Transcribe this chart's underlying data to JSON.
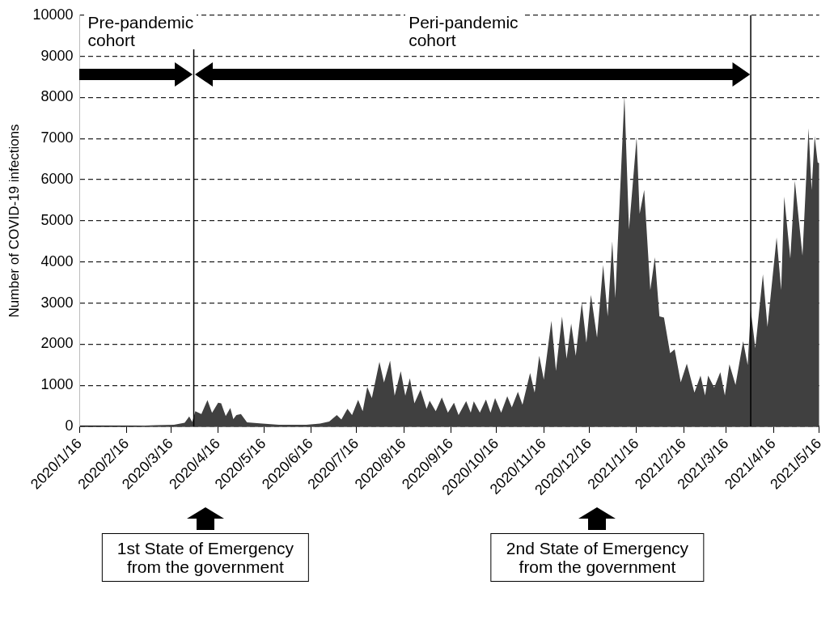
{
  "chart_data": {
    "type": "area",
    "ylabel": "Number of COVID-19 infections",
    "x": [
      "2020-01-16",
      "2020-02-21",
      "2020-03-06",
      "2020-03-18",
      "2020-03-25",
      "2020-03-28",
      "2020-03-30",
      "2020-04-01",
      "2020-04-05",
      "2020-04-09",
      "2020-04-12",
      "2020-04-16",
      "2020-04-18",
      "2020-04-21",
      "2020-04-24",
      "2020-04-26",
      "2020-04-28",
      "2020-05-01",
      "2020-05-05",
      "2020-05-15",
      "2020-05-26",
      "2020-06-13",
      "2020-06-22",
      "2020-06-28",
      "2020-07-03",
      "2020-07-06",
      "2020-07-10",
      "2020-07-13",
      "2020-07-17",
      "2020-07-20",
      "2020-07-23",
      "2020-07-26",
      "2020-07-31",
      "2020-08-03",
      "2020-08-07",
      "2020-08-10",
      "2020-08-14",
      "2020-08-17",
      "2020-08-20",
      "2020-08-23",
      "2020-08-27",
      "2020-08-31",
      "2020-09-02",
      "2020-09-06",
      "2020-09-10",
      "2020-09-14",
      "2020-09-18",
      "2020-09-21",
      "2020-09-26",
      "2020-09-29",
      "2020-10-01",
      "2020-10-05",
      "2020-10-09",
      "2020-10-12",
      "2020-10-15",
      "2020-10-19",
      "2020-10-23",
      "2020-10-26",
      "2020-10-30",
      "2020-11-02",
      "2020-11-07",
      "2020-11-10",
      "2020-11-13",
      "2020-11-16",
      "2020-11-21",
      "2020-11-24",
      "2020-11-28",
      "2020-12-01",
      "2020-12-04",
      "2020-12-07",
      "2020-12-11",
      "2020-12-14",
      "2020-12-17",
      "2020-12-21",
      "2020-12-25",
      "2020-12-28",
      "2020-12-31",
      "2021-01-02",
      "2021-01-08",
      "2021-01-11",
      "2021-01-16",
      "2021-01-18",
      "2021-01-21",
      "2021-01-25",
      "2021-01-28",
      "2021-01-31",
      "2021-02-03",
      "2021-02-07",
      "2021-02-10",
      "2021-02-14",
      "2021-02-18",
      "2021-02-23",
      "2021-02-27",
      "2021-03-02",
      "2021-03-04",
      "2021-03-08",
      "2021-03-12",
      "2021-03-15",
      "2021-03-18",
      "2021-03-22",
      "2021-03-27",
      "2021-03-30",
      "2021-04-01",
      "2021-04-04",
      "2021-04-09",
      "2021-04-12",
      "2021-04-18",
      "2021-04-21",
      "2021-04-23",
      "2021-04-27",
      "2021-04-30",
      "2021-05-05",
      "2021-05-09",
      "2021-05-11",
      "2021-05-13",
      "2021-05-15",
      "2021-05-16"
    ],
    "series": [
      {
        "color": "#404040",
        "values": [
          0,
          10,
          30,
          40,
          90,
          240,
          110,
          370,
          300,
          640,
          330,
          575,
          560,
          250,
          450,
          180,
          275,
          300,
          100,
          70,
          40,
          40,
          70,
          120,
          275,
          170,
          430,
          275,
          645,
          370,
          960,
          690,
          1570,
          1070,
          1600,
          750,
          1345,
          750,
          1170,
          560,
          895,
          430,
          625,
          370,
          705,
          335,
          575,
          275,
          615,
          335,
          610,
          335,
          655,
          335,
          690,
          335,
          735,
          465,
          840,
          525,
          1300,
          820,
          1715,
          1140,
          2570,
          1350,
          2670,
          1650,
          2500,
          1715,
          3010,
          2035,
          3200,
          2160,
          3925,
          2675,
          4500,
          3125,
          8040,
          4790,
          7030,
          5170,
          5750,
          3315,
          4115,
          2675,
          2645,
          1780,
          1875,
          1075,
          1525,
          820,
          1235,
          755,
          1235,
          945,
          1320,
          755,
          1510,
          1010,
          2070,
          1490,
          2835,
          1905,
          3700,
          2420,
          4595,
          3315,
          5590,
          4085,
          5970,
          4150,
          7250,
          5750,
          7060,
          6420,
          6400
        ]
      }
    ],
    "xlim": [
      "2020-01-16",
      "2021-05-16"
    ],
    "xticks": [
      {
        "value": "2020-01-16",
        "label": "2020/1/16"
      },
      {
        "value": "2020-02-16",
        "label": "2020/2/16"
      },
      {
        "value": "2020-03-16",
        "label": "2020/3/16"
      },
      {
        "value": "2020-04-16",
        "label": "2020/4/16"
      },
      {
        "value": "2020-05-16",
        "label": "2020/5/16"
      },
      {
        "value": "2020-06-16",
        "label": "2020/6/16"
      },
      {
        "value": "2020-07-16",
        "label": "2020/7/16"
      },
      {
        "value": "2020-08-16",
        "label": "2020/8/16"
      },
      {
        "value": "2020-09-16",
        "label": "2020/9/16"
      },
      {
        "value": "2020-10-16",
        "label": "2020/10/16"
      },
      {
        "value": "2020-11-16",
        "label": "2020/11/16"
      },
      {
        "value": "2020-12-16",
        "label": "2020/12/16"
      },
      {
        "value": "2021-01-16",
        "label": "2021/1/16"
      },
      {
        "value": "2021-02-16",
        "label": "2021/2/16"
      },
      {
        "value": "2021-03-16",
        "label": "2021/3/16"
      },
      {
        "value": "2021-04-16",
        "label": "2021/4/16"
      },
      {
        "value": "2021-05-16",
        "label": "2021/5/16"
      }
    ],
    "ylim": [
      0,
      10000
    ],
    "yticks": [
      0,
      1000,
      2000,
      3000,
      4000,
      5000,
      6000,
      7000,
      8000,
      9000,
      10000
    ],
    "grid": "y",
    "ref_lines": [
      {
        "axis": "x",
        "value": "2020-03-31",
        "color": "#000000"
      },
      {
        "axis": "x",
        "value": "2021-04-01",
        "color": "#000000"
      }
    ],
    "annotations": [
      "Pre-pandemic\ncohort",
      "Peri-pandemic\ncohort",
      "1st State of Emergency\nfrom the government",
      "2nd State of Emergency\nfrom the government"
    ]
  }
}
